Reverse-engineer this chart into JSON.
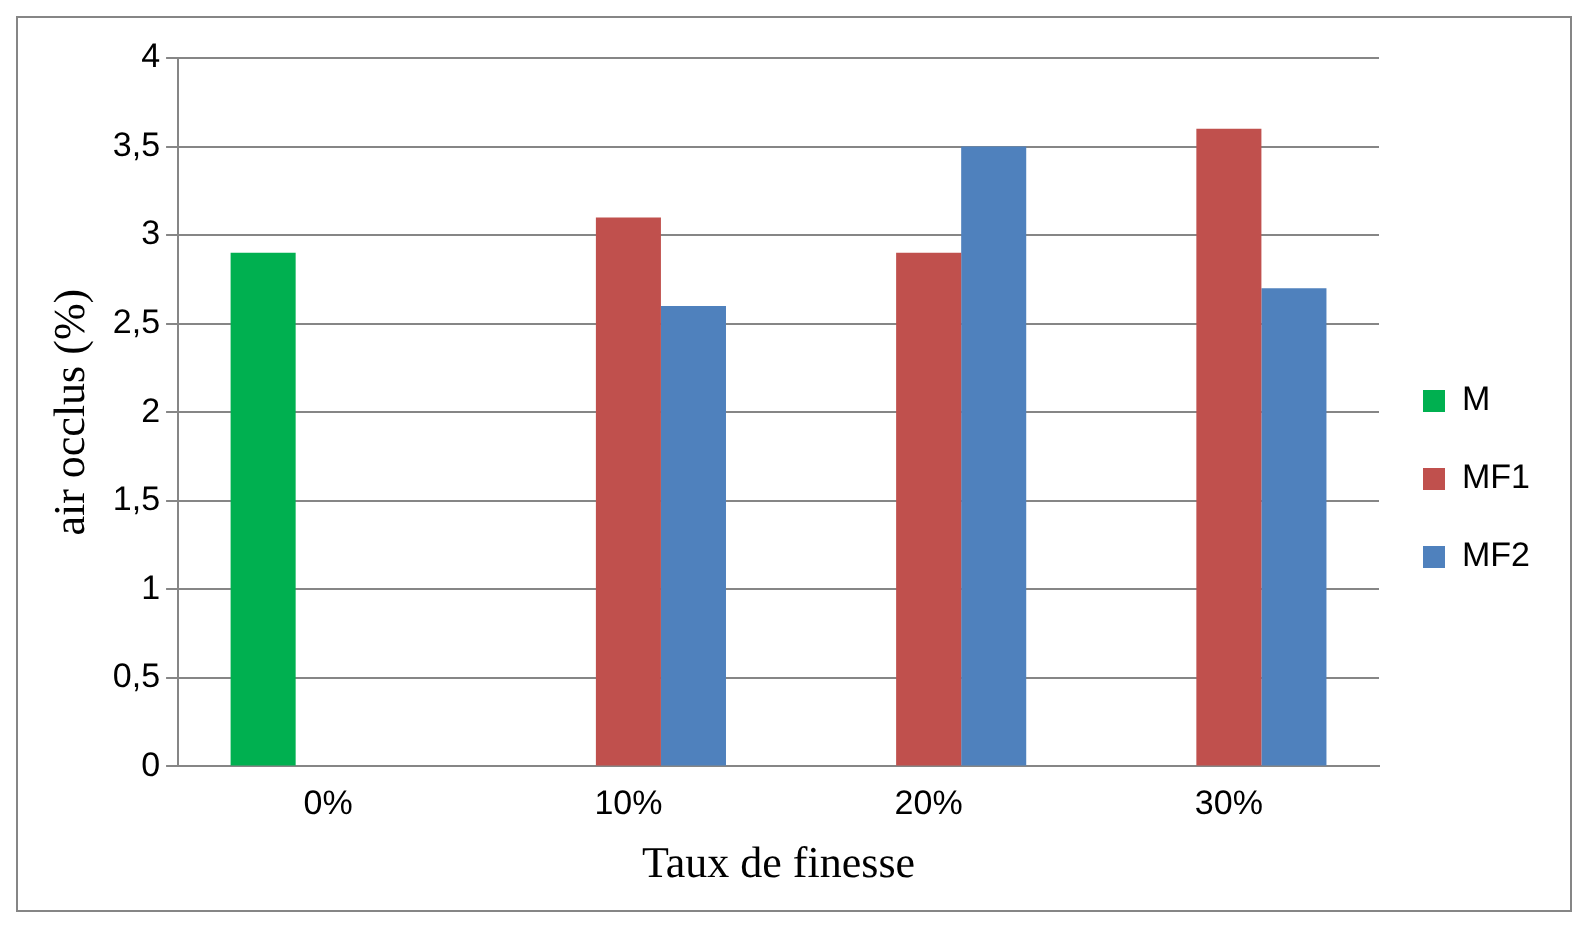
{
  "chart_data": {
    "type": "bar",
    "xlabel": "Taux de finesse",
    "ylabel": "air occlus (%)",
    "categories": [
      "0%",
      "10%",
      "20%",
      "30%"
    ],
    "series": [
      {
        "name": "M",
        "color": "#00b050",
        "values": [
          2.9,
          null,
          null,
          null
        ]
      },
      {
        "name": "MF1",
        "color": "#c0504d",
        "values": [
          null,
          3.1,
          2.9,
          3.6
        ]
      },
      {
        "name": "MF2",
        "color": "#4f81bd",
        "values": [
          null,
          2.6,
          3.5,
          2.7
        ]
      }
    ],
    "ylim": [
      0,
      4
    ],
    "yticks": [
      0,
      {
        "value": 0.5,
        "label": "0,5"
      },
      1,
      {
        "value": 1.5,
        "label": "1,5"
      },
      2,
      {
        "value": 2.5,
        "label": "2,5"
      },
      3,
      {
        "value": 3.5,
        "label": "3,5"
      },
      4
    ],
    "grid": "y",
    "legend": "right"
  }
}
